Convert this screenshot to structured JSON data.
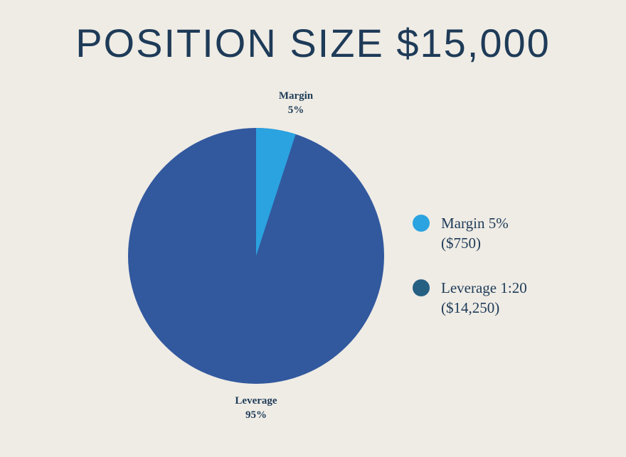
{
  "title": "Position size $15,000",
  "chart": {
    "type": "pie",
    "radius": 180,
    "background_color": "#efece5",
    "slices": [
      {
        "name": "Margin",
        "percent": 5,
        "color": "#2aa3e0",
        "label_line1": "Margin",
        "label_line2": "5%"
      },
      {
        "name": "Leverage",
        "percent": 95,
        "color": "#32599e",
        "label_line1": "Leverage",
        "label_line2": "95%"
      }
    ],
    "label_fontsize": 15,
    "label_color": "#1e3b58",
    "label_fontweight": 700
  },
  "legend": {
    "items": [
      {
        "swatch_color": "#2aa3e0",
        "line1": "Margin 5%",
        "line2": "($750)"
      },
      {
        "swatch_color": "#256083",
        "line1": "Leverage 1:20",
        "line2": "($14,250)"
      }
    ],
    "fontsize": 21,
    "text_color": "#1e3b58",
    "swatch_radius": 12
  },
  "title_style": {
    "fontsize": 56,
    "color": "#1e3b58",
    "letter_spacing": 2
  }
}
